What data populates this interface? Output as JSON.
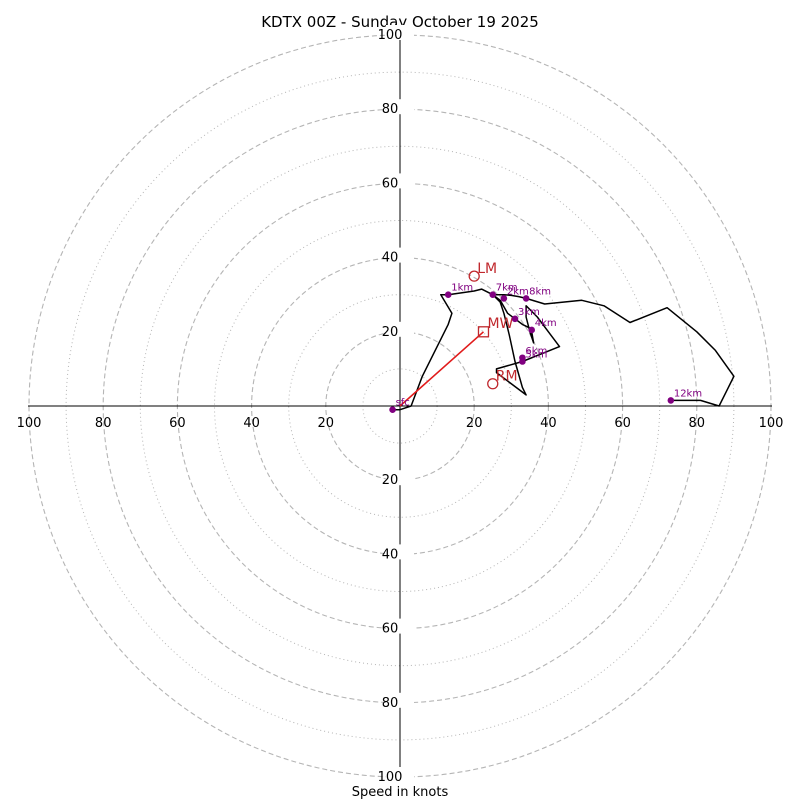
{
  "chart_data": {
    "type": "hodograph",
    "title": "KDTX 00Z - Sunday October 19 2025",
    "xlabel": "Speed in knots",
    "range": [
      -100,
      100
    ],
    "ring_speeds_dashed": [
      20,
      40,
      60,
      80,
      100
    ],
    "ring_speeds_dotted": [
      10,
      30,
      50,
      70,
      90
    ],
    "x_tick_labels": [
      "100",
      "80",
      "60",
      "40",
      "20",
      "20",
      "40",
      "60",
      "80",
      "100"
    ],
    "x_tick_values": [
      -100,
      -80,
      -60,
      -40,
      -20,
      20,
      40,
      60,
      80,
      100
    ],
    "y_tick_labels": [
      "100",
      "80",
      "60",
      "40",
      "20",
      "20",
      "40",
      "60",
      "80",
      "100"
    ],
    "y_tick_values": [
      100,
      80,
      60,
      40,
      20,
      -20,
      -40,
      -60,
      -80,
      -100
    ],
    "hodograph_trace": [
      [
        -2,
        -1
      ],
      [
        0,
        -1
      ],
      [
        3,
        0
      ],
      [
        6,
        8
      ],
      [
        9,
        14
      ],
      [
        13,
        22
      ],
      [
        14,
        25
      ],
      [
        11,
        30
      ],
      [
        13,
        30
      ],
      [
        20,
        31
      ],
      [
        22,
        31.5
      ],
      [
        25,
        30
      ],
      [
        28,
        30
      ],
      [
        30,
        29.8
      ],
      [
        32,
        29.5
      ],
      [
        34,
        29
      ],
      [
        39,
        27.5
      ],
      [
        49,
        28.5
      ],
      [
        55,
        27
      ],
      [
        62,
        22.5
      ],
      [
        72,
        26.5
      ],
      [
        80,
        20
      ],
      [
        85,
        15
      ],
      [
        90,
        8
      ],
      [
        88,
        4
      ],
      [
        86,
        0
      ],
      [
        81,
        1.5
      ],
      [
        73,
        1.5
      ]
    ],
    "hodograph_loop": [
      [
        25,
        30
      ],
      [
        27,
        28.5
      ],
      [
        29,
        25
      ],
      [
        31,
        23.5
      ],
      [
        33,
        22
      ],
      [
        35,
        21
      ],
      [
        35.5,
        20
      ],
      [
        36,
        17
      ],
      [
        35,
        20
      ],
      [
        34,
        24
      ],
      [
        34,
        27
      ],
      [
        35,
        26
      ],
      [
        37,
        24
      ],
      [
        40,
        20
      ],
      [
        43,
        16
      ],
      [
        33,
        12
      ],
      [
        26,
        10
      ],
      [
        26,
        9
      ],
      [
        34,
        3
      ],
      [
        33,
        5
      ],
      [
        31,
        12
      ],
      [
        29.5,
        19
      ],
      [
        29,
        21
      ],
      [
        28,
        25
      ],
      [
        27,
        28
      ],
      [
        25,
        30
      ]
    ],
    "height_markers": [
      {
        "label": "sfc",
        "u": -2,
        "v": -1
      },
      {
        "label": "1km",
        "u": 13,
        "v": 30
      },
      {
        "label": "2km",
        "u": 28,
        "v": 29
      },
      {
        "label": "3km",
        "u": 31,
        "v": 23.5
      },
      {
        "label": "4km",
        "u": 35.5,
        "v": 20.5
      },
      {
        "label": "5km",
        "u": 33,
        "v": 12
      },
      {
        "label": "6km",
        "u": 33,
        "v": 13
      },
      {
        "label": "7km",
        "u": 25,
        "v": 30
      },
      {
        "label": "8km",
        "u": 34,
        "v": 29
      },
      {
        "label": "12km",
        "u": 73,
        "v": 1.5
      }
    ],
    "storm_motion": {
      "mw": {
        "label": "MW",
        "u": 22.5,
        "v": 20
      },
      "lm": {
        "label": "LM",
        "u": 20,
        "v": 35
      },
      "rm": {
        "label": "RM",
        "u": 25,
        "v": 6
      }
    },
    "colors": {
      "trace": "#000000",
      "marker": "#800080",
      "motion": "#c0282d",
      "mw_vector": "#e11b1b",
      "ring": "#b5b5b5"
    }
  }
}
